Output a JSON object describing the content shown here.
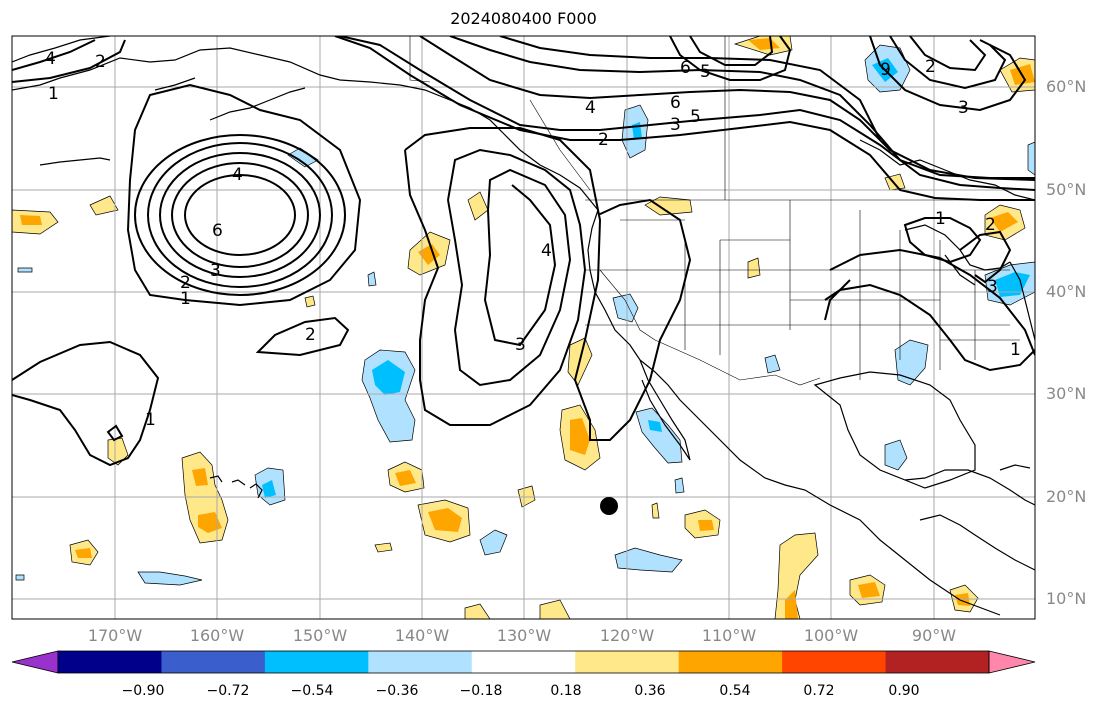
{
  "title": "2024080400 F000",
  "lat_labels": [
    "60°N",
    "50°N",
    "40°N",
    "30°N",
    "20°N",
    "10°N"
  ],
  "lon_labels": [
    "170°W",
    "160°W",
    "150°W",
    "140°W",
    "130°W",
    "120°W",
    "110°W",
    "100°W",
    "90°W"
  ],
  "colorbar": {
    "ticks": [
      "−0.90",
      "−0.72",
      "−0.54",
      "−0.36",
      "−0.18",
      "0.18",
      "0.36",
      "0.54",
      "0.72",
      "0.90"
    ],
    "colors": [
      "#9932cc",
      "#00008b",
      "#3a5fcd",
      "#00bfff",
      "#b0e2ff",
      "#ffffff",
      "#ffe88a",
      "#ffa500",
      "#ff4500",
      "#b22222",
      "#ff87ab"
    ]
  },
  "contour_labels": [
    {
      "text": "1"
    },
    {
      "text": "2"
    },
    {
      "text": "4"
    },
    {
      "text": "2"
    },
    {
      "text": "3"
    },
    {
      "text": "4"
    },
    {
      "text": "6"
    },
    {
      "text": "1"
    },
    {
      "text": "2"
    },
    {
      "text": "3"
    },
    {
      "text": "4"
    },
    {
      "text": "1"
    },
    {
      "text": "4"
    },
    {
      "text": "6"
    },
    {
      "text": "5"
    },
    {
      "text": "3"
    },
    {
      "text": "2"
    },
    {
      "text": "6"
    },
    {
      "text": "5"
    },
    {
      "text": "9"
    },
    {
      "text": "2"
    },
    {
      "text": "3"
    },
    {
      "text": "1"
    },
    {
      "text": "2"
    },
    {
      "text": "3"
    },
    {
      "text": "1"
    }
  ]
}
